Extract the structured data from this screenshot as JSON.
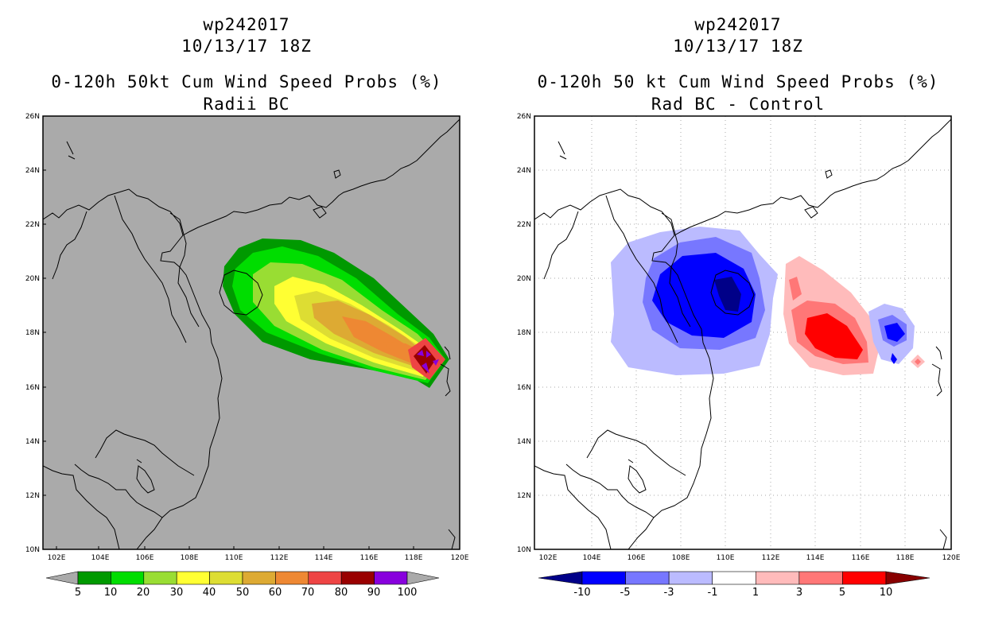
{
  "left": {
    "storm_id": "wp242017",
    "datetime": "10/13/17 18Z",
    "product": "0-120h 50kt Cum Wind Speed Probs (%)",
    "subtitle": "Radii BC",
    "lat_labels": [
      "26N",
      "24N",
      "22N",
      "20N",
      "18N",
      "16N",
      "14N",
      "12N",
      "10N"
    ],
    "lon_labels": [
      "102E",
      "104E",
      "106E",
      "108E",
      "110E",
      "112E",
      "114E",
      "116E",
      "118E",
      "120E"
    ],
    "colorbar": {
      "colors": [
        "#009900",
        "#00dd00",
        "#99dd33",
        "#ffff33",
        "#dddd33",
        "#ddaa33",
        "#ee8833",
        "#ee4444",
        "#990000",
        "#8800dd"
      ],
      "labels": [
        "5",
        "10",
        "20",
        "30",
        "40",
        "50",
        "60",
        "70",
        "80",
        "90",
        "100"
      ]
    },
    "background_color": "#aaaaaa"
  },
  "right": {
    "storm_id": "wp242017",
    "datetime": "10/13/17 18Z",
    "product": "0-120h 50 kt Cum Wind Speed Probs (%)",
    "subtitle": "Rad BC - Control",
    "lat_labels": [
      "26N",
      "24N",
      "22N",
      "20N",
      "18N",
      "16N",
      "14N",
      "12N",
      "10N"
    ],
    "lon_labels": [
      "102E",
      "104E",
      "106E",
      "108E",
      "110E",
      "112E",
      "114E",
      "116E",
      "118E",
      "120E"
    ],
    "colorbar": {
      "colors": [
        "#0000ff",
        "#7777ff",
        "#bbbbff",
        "#ffffff",
        "#ffbbbb",
        "#ff7777",
        "#ff0000"
      ],
      "end_low": "#000088",
      "end_high": "#880000",
      "labels": [
        "-10",
        "-5",
        "-3",
        "-1",
        "1",
        "3",
        "5",
        "10"
      ]
    }
  }
}
